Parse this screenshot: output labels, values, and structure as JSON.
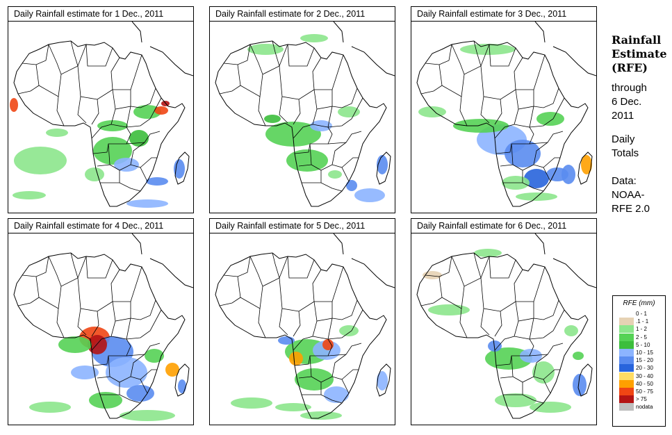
{
  "panels": [
    {
      "title": "Daily Rainfall estimate for  1 Dec., 2011",
      "variant": 0
    },
    {
      "title": "Daily Rainfall estimate for  2 Dec., 2011",
      "variant": 1
    },
    {
      "title": "Daily Rainfall estimate for  3 Dec., 2011",
      "variant": 2
    },
    {
      "title": "Daily Rainfall estimate for  4 Dec., 2011",
      "variant": 3
    },
    {
      "title": "Daily Rainfall estimate for  5 Dec., 2011",
      "variant": 4
    },
    {
      "title": "Daily Rainfall estimate for  6 Dec., 2011",
      "variant": 5
    }
  ],
  "side": {
    "title_lines": [
      "Rainfall",
      "Estimate",
      "(RFE)"
    ],
    "through_lines": [
      "through",
      "6 Dec.",
      "2011"
    ],
    "daily_lines": [
      "Daily",
      "Totals"
    ],
    "data_lines": [
      "Data:",
      "NOAA-",
      "RFE 2.0"
    ]
  },
  "legend": {
    "title": "RFE (mm)",
    "items": [
      {
        "label": "0 - 1",
        "color": "#ffffff"
      },
      {
        "label": ".1 - 1",
        "color": "#e6d2b4"
      },
      {
        "label": "1 - 2",
        "color": "#8ce68c"
      },
      {
        "label": "2 - 5",
        "color": "#55d255"
      },
      {
        "label": "5 - 10",
        "color": "#3cbe3c"
      },
      {
        "label": "10 - 15",
        "color": "#8cb4ff"
      },
      {
        "label": "15 - 20",
        "color": "#5a8cf0"
      },
      {
        "label": "20 - 30",
        "color": "#2864dc"
      },
      {
        "label": "30 - 40",
        "color": "#ffdc64"
      },
      {
        "label": "40 - 50",
        "color": "#ffa000"
      },
      {
        "label": "50 - 75",
        "color": "#f04614"
      },
      {
        "label": "> 75",
        "color": "#b41414"
      },
      {
        "label": "nodata",
        "color": "#bebebe"
      }
    ]
  }
}
